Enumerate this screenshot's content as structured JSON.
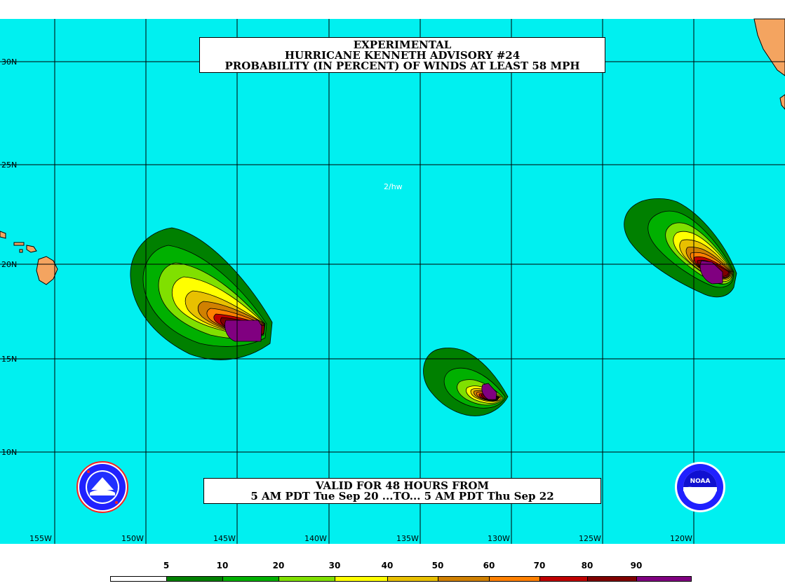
{
  "title": {
    "line1": "EXPERIMENTAL",
    "line2": "HURRICANE KENNETH ADVISORY #24",
    "line3": "PROBABILITY (IN PERCENT) OF WINDS AT LEAST 58 MPH"
  },
  "valid": {
    "line1": "VALID FOR 48 HOURS FROM",
    "line2": "5 AM PDT Tue Sep 20 ...TO... 5 AM PDT Thu Sep 22"
  },
  "map_note": "2/hw",
  "lat_labels": [
    "30N",
    "25N",
    "20N",
    "15N",
    "10N"
  ],
  "lon_labels": [
    "155W",
    "150W",
    "145W",
    "140W",
    "135W",
    "130W",
    "125W",
    "120W"
  ],
  "legend": {
    "labels": [
      "5",
      "10",
      "20",
      "30",
      "40",
      "50",
      "60",
      "70",
      "80",
      "90"
    ],
    "colors": [
      "#ffffff",
      "#008000",
      "#00b000",
      "#80e000",
      "#ffff00",
      "#e8c000",
      "#d08000",
      "#ff8000",
      "#c00000",
      "#800000",
      "#800080"
    ]
  },
  "colors": {
    "ocean": "#00f0f0",
    "land": "#f4a460",
    "grid": "#000000"
  },
  "logos": {
    "left": "nws-logo",
    "right": "noaa-logo",
    "right_text": "NOAA"
  }
}
